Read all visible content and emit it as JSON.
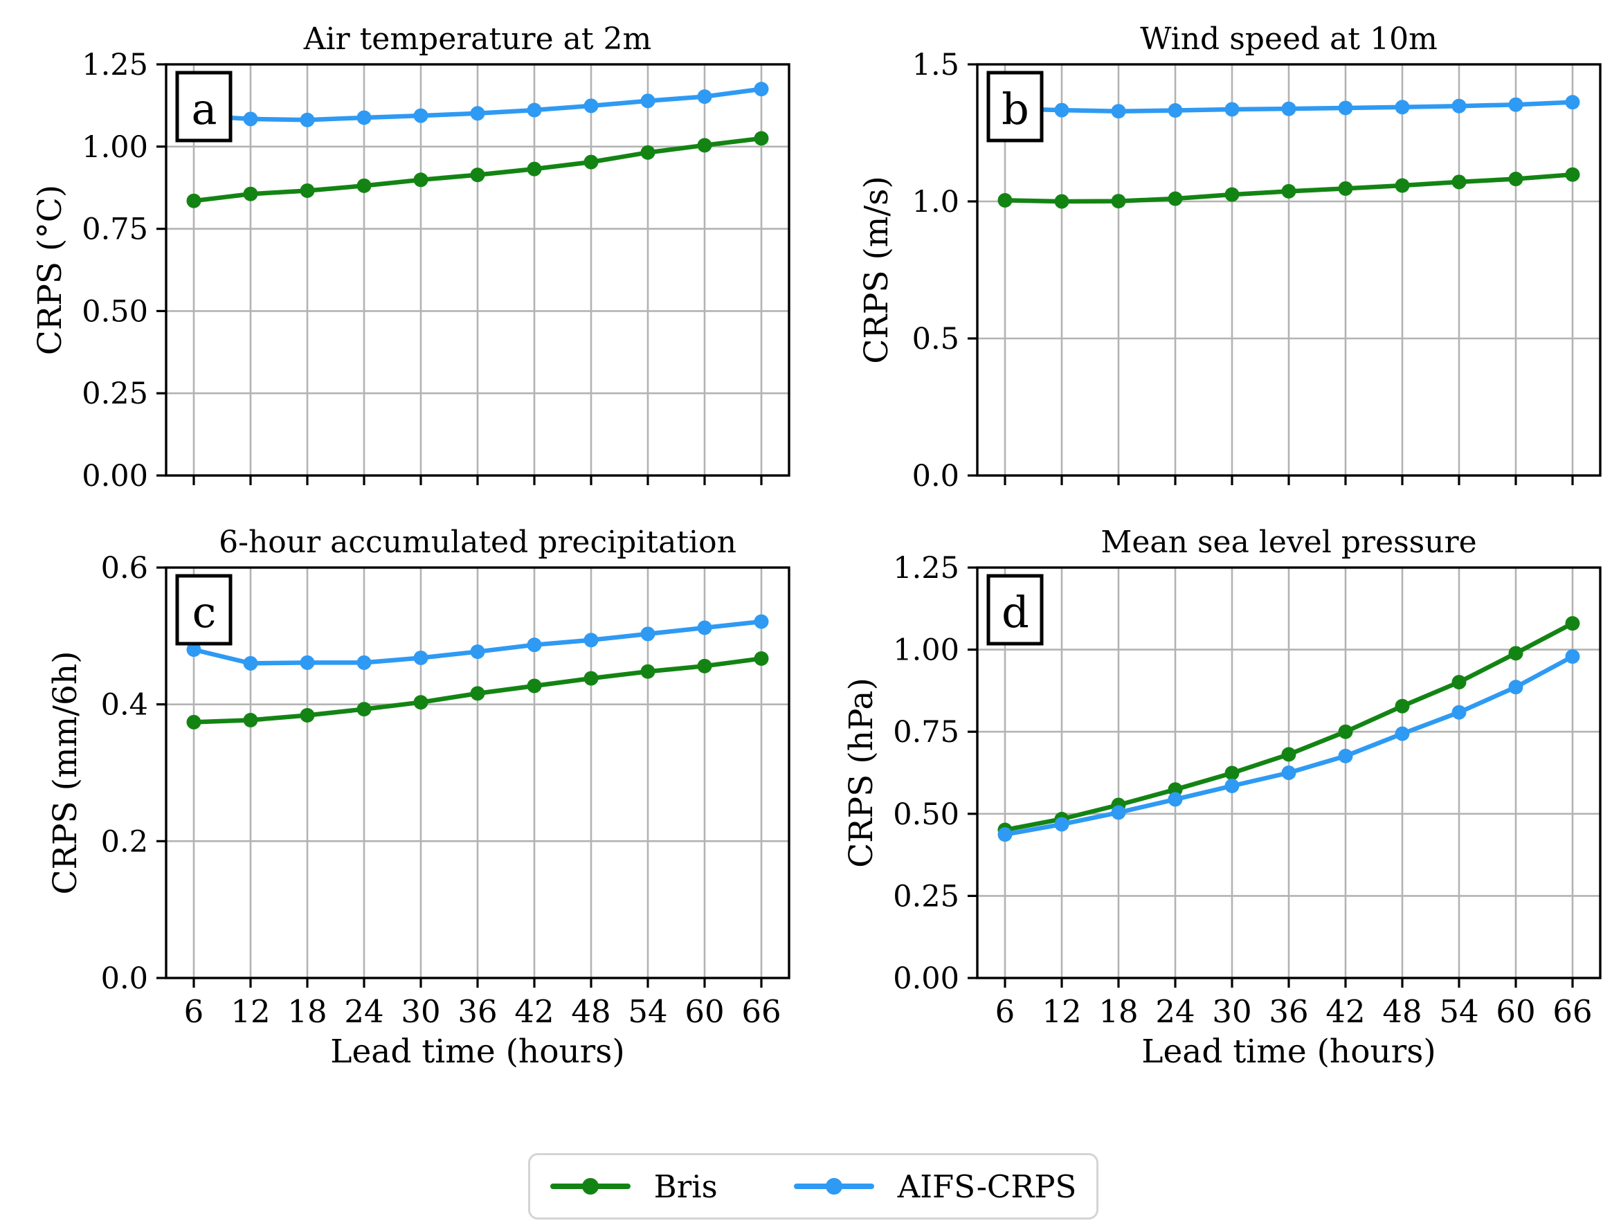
{
  "figure": {
    "background": "#ffffff",
    "x_axis_label": "Lead time (hours)"
  },
  "colors": {
    "bris": "#138413",
    "aifs_crps": "#2e9af3",
    "grid": "#b3b3b3",
    "axis": "#000000",
    "legend_border": "#d4d4d4"
  },
  "legend": {
    "position": "lower center",
    "items": [
      {
        "name": "bris",
        "label": "Bris",
        "color": "#138413"
      },
      {
        "name": "aifs-crps",
        "label": "AIFS-CRPS",
        "color": "#2e9af3"
      }
    ]
  },
  "chart_data": [
    {
      "id": "a",
      "letter": "a",
      "type": "line",
      "title": "Air temperature at 2m",
      "ylabel": "CRPS (°C)",
      "xlabel": "",
      "show_xtick_labels": false,
      "grid": true,
      "ylim": [
        0,
        1.25
      ],
      "ytick_labels": [
        "0.00",
        "0.25",
        "0.50",
        "0.75",
        "1.00",
        "1.25"
      ],
      "ytick_values": [
        0,
        0.25,
        0.5,
        0.75,
        1.0,
        1.25
      ],
      "x": [
        6,
        12,
        18,
        24,
        30,
        36,
        42,
        48,
        54,
        60,
        66
      ],
      "series": [
        {
          "name": "Bris",
          "color": "#138413",
          "values": [
            0.835,
            0.856,
            0.866,
            0.881,
            0.899,
            0.914,
            0.932,
            0.953,
            0.982,
            1.004,
            1.025
          ]
        },
        {
          "name": "AIFS-CRPS",
          "color": "#2e9af3",
          "values": [
            1.094,
            1.084,
            1.081,
            1.088,
            1.094,
            1.101,
            1.111,
            1.124,
            1.139,
            1.152,
            1.175
          ]
        }
      ]
    },
    {
      "id": "b",
      "letter": "b",
      "type": "line",
      "title": "Wind speed at 10m",
      "ylabel": "CRPS (m/s)",
      "xlabel": "",
      "show_xtick_labels": false,
      "grid": true,
      "ylim": [
        0,
        1.5
      ],
      "ytick_labels": [
        "0.0",
        "0.5",
        "1.0",
        "1.5"
      ],
      "ytick_values": [
        0,
        0.5,
        1.0,
        1.5
      ],
      "x": [
        6,
        12,
        18,
        24,
        30,
        36,
        42,
        48,
        54,
        60,
        66
      ],
      "series": [
        {
          "name": "Bris",
          "color": "#138413",
          "values": [
            1.004,
            1.0,
            1.001,
            1.01,
            1.025,
            1.037,
            1.047,
            1.058,
            1.071,
            1.082,
            1.098
          ]
        },
        {
          "name": "AIFS-CRPS",
          "color": "#2e9af3",
          "values": [
            1.338,
            1.333,
            1.329,
            1.332,
            1.336,
            1.338,
            1.341,
            1.344,
            1.348,
            1.353,
            1.362
          ]
        }
      ]
    },
    {
      "id": "c",
      "letter": "c",
      "type": "line",
      "title": "6-hour accumulated precipitation",
      "ylabel": "CRPS (mm/6h)",
      "xlabel": "Lead time (hours)",
      "show_xtick_labels": true,
      "grid": true,
      "ylim": [
        0,
        0.6
      ],
      "ytick_labels": [
        "0.0",
        "0.2",
        "0.4",
        "0.6"
      ],
      "ytick_values": [
        0,
        0.2,
        0.4,
        0.6
      ],
      "x": [
        6,
        12,
        18,
        24,
        30,
        36,
        42,
        48,
        54,
        60,
        66
      ],
      "series": [
        {
          "name": "Bris",
          "color": "#138413",
          "values": [
            0.374,
            0.377,
            0.384,
            0.393,
            0.403,
            0.416,
            0.427,
            0.438,
            0.448,
            0.456,
            0.467
          ]
        },
        {
          "name": "AIFS-CRPS",
          "color": "#2e9af3",
          "values": [
            0.48,
            0.46,
            0.461,
            0.461,
            0.468,
            0.477,
            0.487,
            0.494,
            0.503,
            0.512,
            0.521
          ]
        }
      ]
    },
    {
      "id": "d",
      "letter": "d",
      "type": "line",
      "title": "Mean sea level pressure",
      "ylabel": "CRPS (hPa)",
      "xlabel": "Lead time (hours)",
      "show_xtick_labels": true,
      "grid": true,
      "ylim": [
        0,
        1.25
      ],
      "ytick_labels": [
        "0.00",
        "0.25",
        "0.50",
        "0.75",
        "1.00",
        "1.25"
      ],
      "ytick_values": [
        0,
        0.25,
        0.5,
        0.75,
        1.0,
        1.25
      ],
      "x": [
        6,
        12,
        18,
        24,
        30,
        36,
        42,
        48,
        54,
        60,
        66
      ],
      "series": [
        {
          "name": "Bris",
          "color": "#138413",
          "values": [
            0.451,
            0.484,
            0.527,
            0.574,
            0.624,
            0.681,
            0.75,
            0.828,
            0.901,
            0.989,
            1.08
          ]
        },
        {
          "name": "AIFS-CRPS",
          "color": "#2e9af3",
          "values": [
            0.437,
            0.468,
            0.504,
            0.544,
            0.585,
            0.625,
            0.676,
            0.744,
            0.809,
            0.886,
            0.979
          ]
        }
      ]
    }
  ]
}
